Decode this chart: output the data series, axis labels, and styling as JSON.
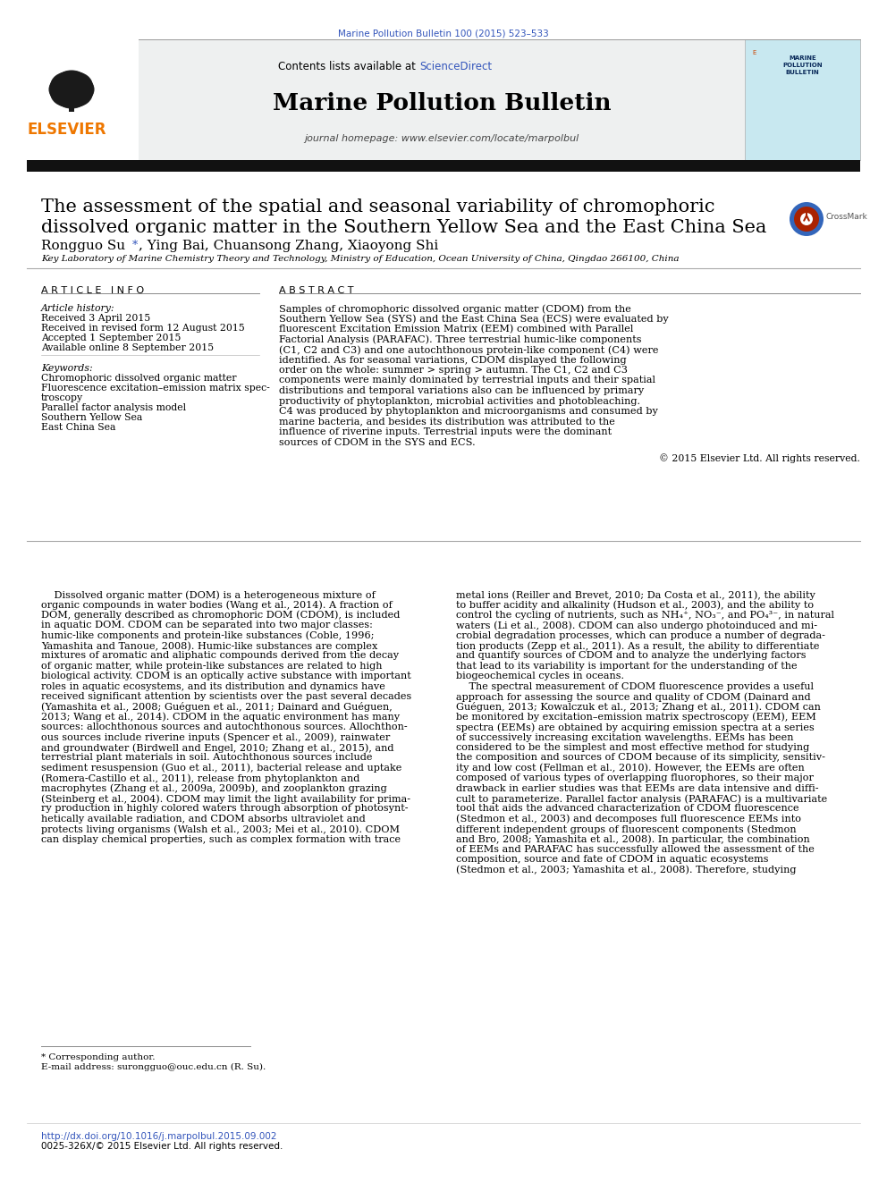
{
  "journal_ref": "Marine Pollution Bulletin 100 (2015) 523–533",
  "journal_title": "Marine Pollution Bulletin",
  "journal_homepage": "journal homepage: www.elsevier.com/locate/marpolbul",
  "paper_title_line1": "The assessment of the spatial and seasonal variability of chromophoric",
  "paper_title_line2": "dissolved organic matter in the Southern Yellow Sea and the East China Sea",
  "author_name": "Rongguo Su ",
  "author_star": "*",
  "author_rest": ", Ying Bai, Chuansong Zhang, Xiaoyong Shi",
  "affiliation": "Key Laboratory of Marine Chemistry Theory and Technology, Ministry of Education, Ocean University of China, Qingdao 266100, China",
  "article_info_header": "A R T I C L E   I N F O",
  "abstract_header": "A B S T R A C T",
  "article_history_header": "Article history:",
  "received": "Received 3 April 2015",
  "received_revised": "Received in revised form 12 August 2015",
  "accepted": "Accepted 1 September 2015",
  "available_online": "Available online 8 September 2015",
  "keywords_header": "Keywords:",
  "keywords": [
    "Chromophoric dissolved organic matter",
    "Fluorescence excitation–emission matrix spec-",
    "troscopy",
    "Parallel factor analysis model",
    "Southern Yellow Sea",
    "East China Sea"
  ],
  "abstract_text": "Samples of chromophoric dissolved organic matter (CDOM) from the Southern Yellow Sea (SYS) and the East China Sea (ECS) were evaluated by fluorescent Excitation Emission Matrix (EEM) combined with Parallel Factorial Analysis (PARAFAC). Three terrestrial humic-like components (C1, C2 and C3) and one autochthonous protein-like component (C4) were identified. As for seasonal variations, CDOM displayed the following order on the whole: summer > spring > autumn. The C1, C2 and C3 components were mainly dominated by terrestrial inputs and their spatial distributions and temporal variations also can be influenced by primary productivity of phytoplankton, microbial activities and photobleaching. C4 was produced by phytoplankton and microorganisms and consumed by marine bacteria, and besides its distribution was attributed to the influence of riverine inputs. Terrestrial inputs were the dominant sources of CDOM in the SYS and ECS.",
  "copyright": "© 2015 Elsevier Ltd. All rights reserved.",
  "body_left_col": [
    "    Dissolved organic matter (DOM) is a heterogeneous mixture of",
    "organic compounds in water bodies (Wang et al., 2014). A fraction of",
    "DOM, generally described as chromophoric DOM (CDOM), is included",
    "in aquatic DOM. CDOM can be separated into two major classes:",
    "humic-like components and protein-like substances (Coble, 1996;",
    "Yamashita and Tanoue, 2008). Humic-like substances are complex",
    "mixtures of aromatic and aliphatic compounds derived from the decay",
    "of organic matter, while protein-like substances are related to high",
    "biological activity. CDOM is an optically active substance with important",
    "roles in aquatic ecosystems, and its distribution and dynamics have",
    "received significant attention by scientists over the past several decades",
    "(Yamashita et al., 2008; Guéguen et al., 2011; Dainard and Guéguen,",
    "2013; Wang et al., 2014). CDOM in the aquatic environment has many",
    "sources: allochthonous sources and autochthonous sources. Allochthon-",
    "ous sources include riverine inputs (Spencer et al., 2009), rainwater",
    "and groundwater (Birdwell and Engel, 2010; Zhang et al., 2015), and",
    "terrestrial plant materials in soil. Autochthonous sources include",
    "sediment resuspension (Guo et al., 2011), bacterial release and uptake",
    "(Romera-Castillo et al., 2011), release from phytoplankton and",
    "macrophytes (Zhang et al., 2009a, 2009b), and zooplankton grazing",
    "(Steinberg et al., 2004). CDOM may limit the light availability for prima-",
    "ry production in highly colored waters through absorption of photosynt-",
    "hetically available radiation, and CDOM absorbs ultraviolet and",
    "protects living organisms (Walsh et al., 2003; Mei et al., 2010). CDOM",
    "can display chemical properties, such as complex formation with trace"
  ],
  "body_right_col": [
    "metal ions (Reiller and Brevet, 2010; Da Costa et al., 2011), the ability",
    "to buffer acidity and alkalinity (Hudson et al., 2003), and the ability to",
    "control the cycling of nutrients, such as NH₄⁺, NO₃⁻, and PO₄³⁻, in natural",
    "waters (Li et al., 2008). CDOM can also undergo photoinduced and mi-",
    "crobial degradation processes, which can produce a number of degrada-",
    "tion products (Zepp et al., 2011). As a result, the ability to differentiate",
    "and quantify sources of CDOM and to analyze the underlying factors",
    "that lead to its variability is important for the understanding of the",
    "biogeochemical cycles in oceans.",
    "    The spectral measurement of CDOM fluorescence provides a useful",
    "approach for assessing the source and quality of CDOM (Dainard and",
    "Guéguen, 2013; Kowalczuk et al., 2013; Zhang et al., 2011). CDOM can",
    "be monitored by excitation–emission matrix spectroscopy (EEM), EEM",
    "spectra (EEMs) are obtained by acquiring emission spectra at a series",
    "of successively increasing excitation wavelengths. EEMs has been",
    "considered to be the simplest and most effective method for studying",
    "the composition and sources of CDOM because of its simplicity, sensitiv-",
    "ity and low cost (Fellman et al., 2010). However, the EEMs are often",
    "composed of various types of overlapping fluorophores, so their major",
    "drawback in earlier studies was that EEMs are data intensive and diffi-",
    "cult to parameterize. Parallel factor analysis (PARAFAC) is a multivariate",
    "tool that aids the advanced characterization of CDOM fluorescence",
    "(Stedmon et al., 2003) and decomposes full fluorescence EEMs into",
    "different independent groups of fluorescent components (Stedmon",
    "and Bro, 2008; Yamashita et al., 2008). In particular, the combination",
    "of EEMs and PARAFAC has successfully allowed the assessment of the",
    "composition, source and fate of CDOM in aquatic ecosystems",
    "(Stedmon et al., 2003; Yamashita et al., 2008). Therefore, studying"
  ],
  "footnote_star": "* Corresponding author.",
  "footnote_email": "E-mail address: surongguo@ouc.edu.cn (R. Su).",
  "doi": "http://dx.doi.org/10.1016/j.marpolbul.2015.09.002",
  "issn": "0025-326X/© 2015 Elsevier Ltd. All rights reserved.",
  "bg_color": "#ffffff",
  "blue_link": "#3355bb",
  "elsevier_orange": "#ee7700",
  "black_bar_color": "#111111",
  "header_bg": "#eef0f0",
  "contents_black": "Contents lists available at ",
  "sciencedirect": "ScienceDirect"
}
